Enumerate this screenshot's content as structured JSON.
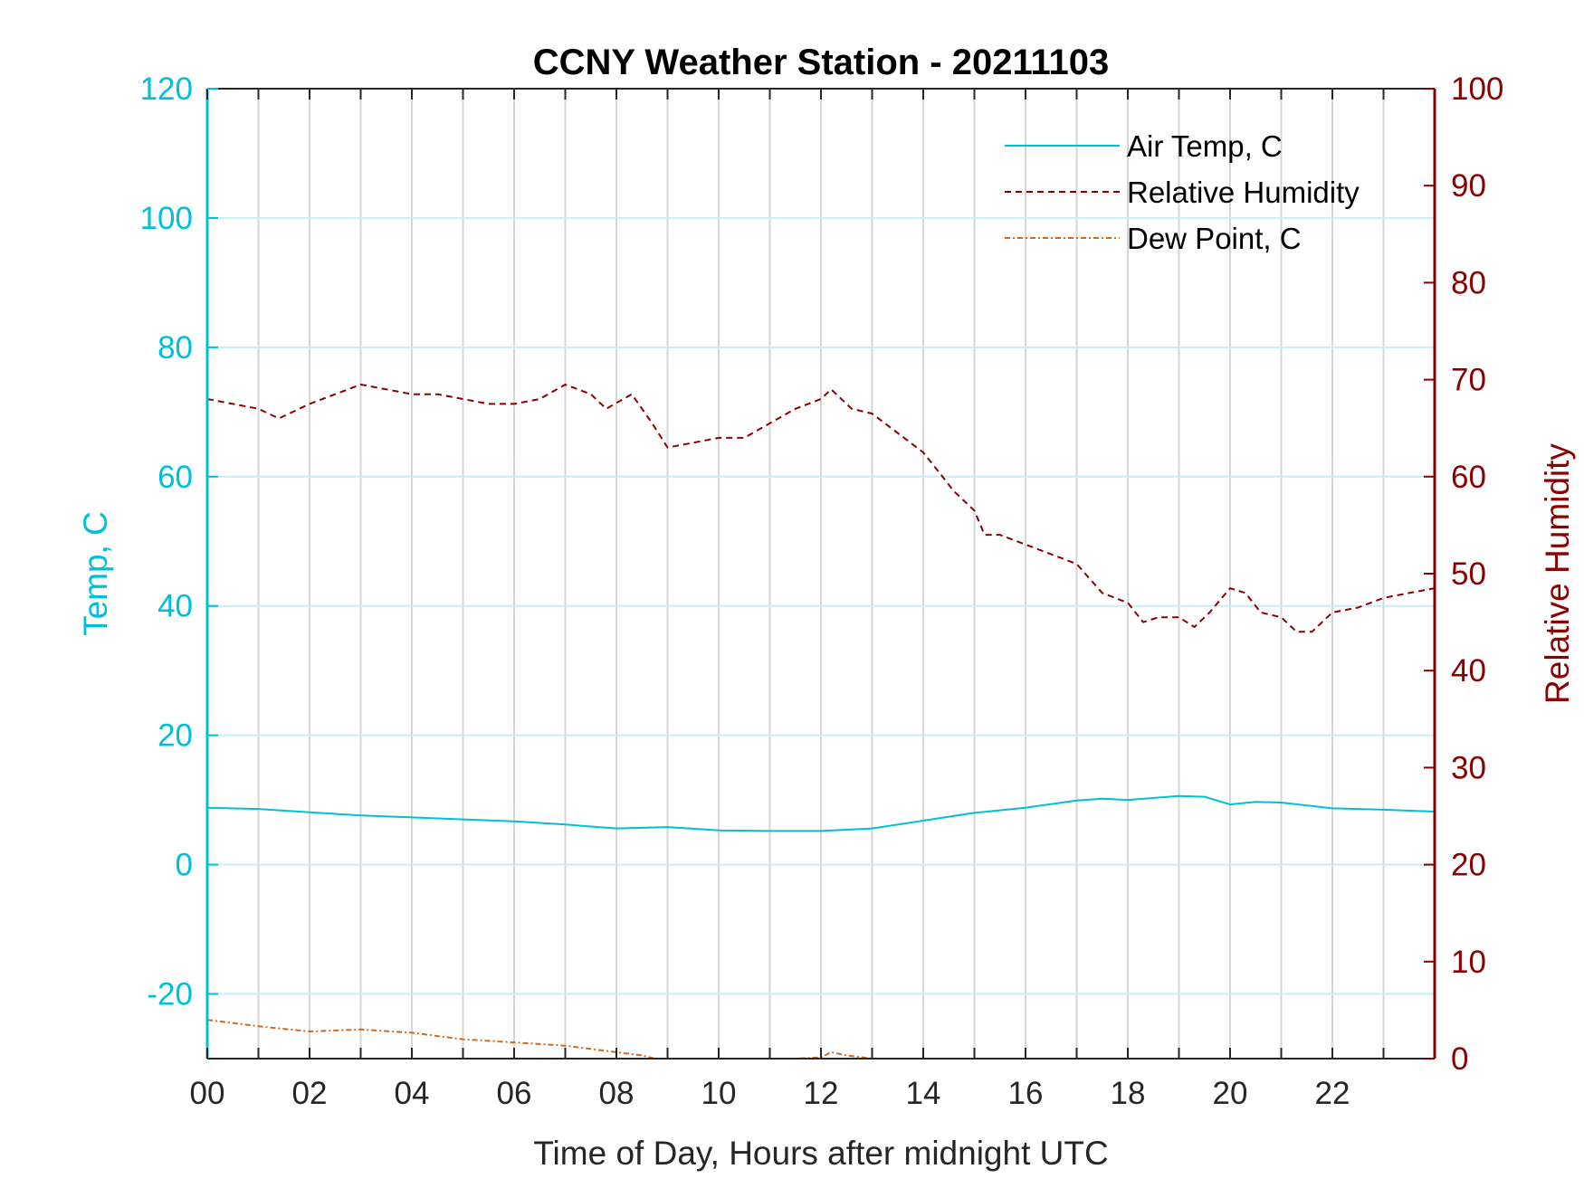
{
  "chart_data": {
    "type": "line",
    "title": "CCNY Weather Station - 20211103",
    "xlabel": "Time of Day, Hours after midnight UTC",
    "ylabel_left": "Temp, C",
    "ylabel_right": "Relative Humidity",
    "xlim": [
      0,
      24
    ],
    "ylim_left": [
      -30,
      120
    ],
    "ylim_right": [
      0,
      100
    ],
    "x_ticks": [
      0,
      2,
      4,
      6,
      8,
      10,
      12,
      14,
      16,
      18,
      20,
      22
    ],
    "x_tick_labels": [
      "00",
      "02",
      "04",
      "06",
      "08",
      "10",
      "12",
      "14",
      "16",
      "18",
      "20",
      "22"
    ],
    "y_ticks_left": [
      -20,
      0,
      20,
      40,
      60,
      80,
      100,
      120
    ],
    "y_ticks_right": [
      0,
      10,
      20,
      30,
      40,
      50,
      60,
      70,
      80,
      90,
      100
    ],
    "grid": true,
    "legend_position": "top-right",
    "colors": {
      "temp": "#00bfd8",
      "humidity": "#8b0000",
      "dewpoint": "#d2691e"
    },
    "series": [
      {
        "name": "Air Temp, C",
        "axis": "left",
        "style": "solid",
        "x": [
          0,
          1,
          2,
          3,
          4,
          5,
          6,
          7,
          8,
          9,
          10,
          11,
          12,
          13,
          14,
          15,
          16,
          17,
          17.5,
          18,
          19,
          19.5,
          20,
          20.5,
          21,
          22,
          23,
          24
        ],
        "y": [
          8.8,
          8.6,
          8.1,
          7.6,
          7.3,
          7.0,
          6.7,
          6.2,
          5.6,
          5.8,
          5.3,
          5.2,
          5.2,
          5.6,
          6.8,
          8.0,
          8.8,
          9.9,
          10.2,
          10.0,
          10.6,
          10.5,
          9.3,
          9.7,
          9.6,
          8.7,
          8.5,
          8.2
        ]
      },
      {
        "name": "Relative Humidity",
        "axis": "right",
        "style": "dashed",
        "x": [
          0,
          0.5,
          1,
          1.4,
          2,
          2.5,
          3,
          3.5,
          4,
          4.5,
          5,
          5.5,
          6,
          6.5,
          7,
          7.5,
          7.8,
          8.3,
          8.7,
          9,
          9.5,
          10,
          10.5,
          11,
          11.5,
          12,
          12.2,
          12.6,
          13,
          13.5,
          14,
          14.3,
          14.6,
          15,
          15.2,
          15.5,
          16,
          16.5,
          17,
          17.5,
          18,
          18.3,
          18.6,
          19,
          19.3,
          19.6,
          20,
          20.3,
          20.6,
          21,
          21.3,
          21.6,
          22,
          22.5,
          23,
          23.5,
          24
        ],
        "y": [
          68,
          67.5,
          67,
          66,
          67.5,
          68.5,
          69.5,
          69,
          68.5,
          68.5,
          68,
          67.5,
          67.5,
          68,
          69.5,
          68.5,
          67,
          68.5,
          65.5,
          63,
          63.5,
          64,
          64,
          65.5,
          67,
          68,
          69,
          67,
          66.5,
          64.5,
          62.5,
          60.5,
          58.5,
          56.5,
          54,
          54,
          53,
          52,
          51,
          48,
          47,
          45,
          45.5,
          45.5,
          44.5,
          46,
          48.5,
          48,
          46,
          45.5,
          44,
          44,
          46,
          46.5,
          47.5,
          48,
          48.5
        ]
      },
      {
        "name": "Dew Point, C",
        "axis": "left",
        "style": "dash-dot",
        "x": [
          0,
          1,
          2,
          3,
          4,
          5,
          6,
          7,
          7.5,
          8,
          8.5,
          9,
          10.7,
          11,
          11.5,
          12,
          12.2,
          12.5,
          13,
          13.5,
          14,
          14.5
        ],
        "y": [
          -24,
          -25,
          -25.8,
          -25.5,
          -26,
          -27,
          -27.5,
          -28,
          -28.5,
          -29,
          -29.5,
          -30.5,
          -30.5,
          -30.2,
          -30,
          -29.8,
          -29.0,
          -29.5,
          -30.0,
          -30.2,
          -30.1,
          -30.3
        ]
      }
    ]
  }
}
